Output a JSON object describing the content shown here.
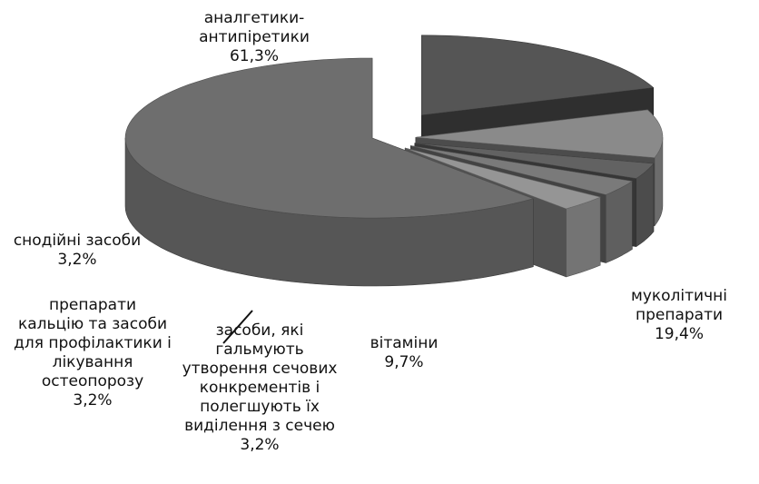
{
  "chart_data": {
    "type": "pie",
    "variant": "3d-exploded",
    "slices": [
      {
        "name": "аналгетики-антипіретики",
        "value": 61.3,
        "label": "61,3%",
        "color": "#6e6e6e",
        "label_lines": [
          "аналгетики-",
          "антипіретики",
          "61,3%"
        ]
      },
      {
        "name": "муколітичні препарати",
        "value": 19.4,
        "label": "19,4%",
        "color": "#555555",
        "label_lines": [
          "муколітичні",
          "препарати",
          "19,4%"
        ]
      },
      {
        "name": "вітаміни",
        "value": 9.7,
        "label": "9,7%",
        "color": "#8a8a8a",
        "label_lines": [
          "вітаміни",
          "9,7%"
        ]
      },
      {
        "name": "засоби, які гальмують утворення сечових конкрементів і полегшують їх виділення з сечею",
        "value": 3.2,
        "label": "3,2%",
        "color": "#626262",
        "label_lines": [
          "засоби, які",
          "гальмують",
          "утворення сечових",
          "конкрементів і",
          "полегшують їх",
          "виділення з сечею",
          "3,2%"
        ]
      },
      {
        "name": "препарати кальцію та засоби для профілактики і лікування остеопорозу",
        "value": 3.2,
        "label": "3,2%",
        "color": "#7a7a7a",
        "label_lines": [
          "препарати",
          "кальцію та засоби",
          "для профілактики і",
          "лікування",
          "остеопорозу",
          "3,2%"
        ]
      },
      {
        "name": "снодійні засоби",
        "value": 3.2,
        "label": "3,2%",
        "color": "#959595",
        "label_lines": [
          "снодійні засоби",
          "3,2%"
        ]
      }
    ]
  }
}
